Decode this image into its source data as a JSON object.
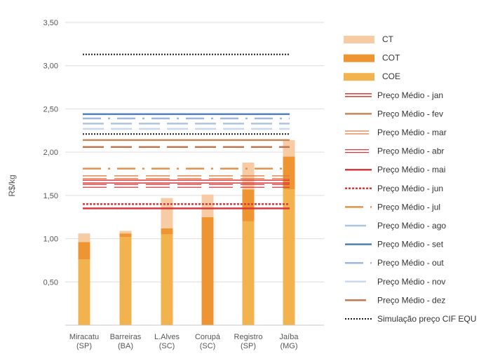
{
  "chart_data": {
    "type": "bar",
    "stacked": true,
    "ylabel": "R$/kg",
    "ylim": [
      0,
      3.5
    ],
    "yticks": [
      "0,50",
      "1,00",
      "1,50",
      "2,00",
      "2,50",
      "3,00",
      "3,50"
    ],
    "ytick_values": [
      0.5,
      1.0,
      1.5,
      2.0,
      2.5,
      3.0,
      3.5
    ],
    "categories": [
      {
        "name": "Miracatu",
        "state": "(SP)"
      },
      {
        "name": "Barreiras",
        "state": "(BA)"
      },
      {
        "name": "L.Alves",
        "state": "(SC)"
      },
      {
        "name": "Corupá",
        "state": "(SC)"
      },
      {
        "name": "Registro",
        "state": "(SP)"
      },
      {
        "name": "Jaíba",
        "state": "(MG)"
      }
    ],
    "series": [
      {
        "name": "COE",
        "color": "#F2B24E",
        "values": [
          0.76,
          1.02,
          1.05,
          0.0,
          1.2,
          1.57
        ]
      },
      {
        "name": "COT",
        "color": "#EE9532",
        "values": [
          0.2,
          0.04,
          0.07,
          1.25,
          0.37,
          0.38
        ]
      },
      {
        "name": "CT",
        "color": "#F7CBA4",
        "values": [
          0.1,
          0.03,
          0.35,
          0.26,
          0.31,
          0.19
        ]
      }
    ],
    "legend_order": [
      "CT",
      "COT",
      "COE"
    ],
    "reference_lines": [
      {
        "name": "Preço Médio - jan",
        "value": 1.66,
        "color": "#D9373A",
        "style": "double"
      },
      {
        "name": "Preço Médio - fev",
        "value": 2.14,
        "color": "#C8875A",
        "style": "solid"
      },
      {
        "name": "Preço Médio - mar",
        "value": 1.71,
        "color": "#E07A3F",
        "style": "double-dash"
      },
      {
        "name": "Preço Médio - abr",
        "value": 1.61,
        "color": "#D9373A",
        "style": "double-dash"
      },
      {
        "name": "Preço Médio - mai",
        "value": 1.35,
        "color": "#D9373A",
        "style": "solid"
      },
      {
        "name": "Preço Médio - jun",
        "value": 1.4,
        "color": "#D9373A",
        "style": "dotted"
      },
      {
        "name": "Preço Médio - jul",
        "value": 1.81,
        "color": "#E0924C",
        "style": "dash-dot"
      },
      {
        "name": "Preço Médio - ago",
        "value": 2.33,
        "color": "#B0C4DE",
        "style": "dash"
      },
      {
        "name": "Preço Médio - set",
        "value": 2.44,
        "color": "#4F7FB8",
        "style": "solid"
      },
      {
        "name": "Preço Médio - out",
        "value": 2.39,
        "color": "#9FB7D9",
        "style": "dash-dot"
      },
      {
        "name": "Preço Médio - nov",
        "value": 2.27,
        "color": "#C9DAEE",
        "style": "dash"
      },
      {
        "name": "Preço Médio - dez",
        "value": 2.06,
        "color": "#C07850",
        "style": "dash"
      },
      {
        "name": "Simulação preço CIF EQU",
        "value": 2.21,
        "color": "#1A1A1A",
        "style": "dotted-fine"
      },
      {
        "name": "Simulação preço CIF EQU",
        "value": 3.13,
        "color": "#1A1A1A",
        "style": "dotted-fine",
        "hide_legend": true
      }
    ]
  }
}
